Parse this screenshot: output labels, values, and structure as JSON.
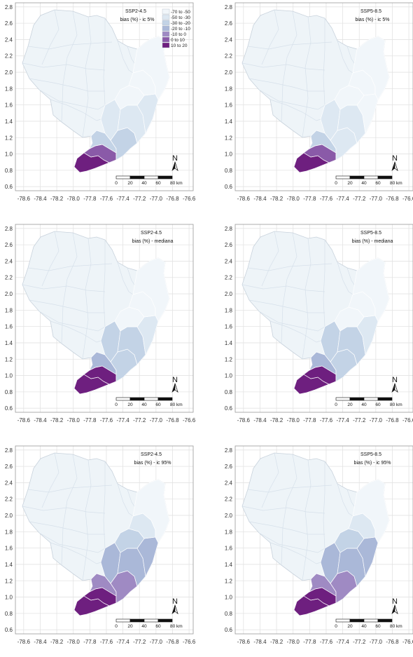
{
  "figure": {
    "colors": {
      "panel_bg": "#ffffff",
      "grid": "#e3e3e3",
      "frame": "#999999",
      "boundary": "#ffffff",
      "base_fill": "#eef4f8"
    },
    "legend": {
      "visible_in_panel": 0,
      "placement": "top-right",
      "classes": [
        {
          "label": "-70 to -50",
          "color": "#f1f6fa"
        },
        {
          "label": "-50 to -30",
          "color": "#dde8f2"
        },
        {
          "label": "-30 to -20",
          "color": "#c3d3e6"
        },
        {
          "label": "-20 to -10",
          "color": "#aab8d8"
        },
        {
          "label": "-10 to 0",
          "color": "#9f8ac3"
        },
        {
          "label": "0 to 10",
          "color": "#8a5aa8"
        },
        {
          "label": "10 to 20",
          "color": "#6e1f7f"
        }
      ]
    },
    "axes": {
      "y_ticks": [
        "2.8",
        "2.6",
        "2.4",
        "2.2",
        "2.0",
        "1.8",
        "1.6",
        "1.4",
        "1.2",
        "1.0",
        "0.8",
        "0.6"
      ],
      "x_ticks": [
        "-78.6",
        "-78.4",
        "-78.2",
        "-78.0",
        "-77.8",
        "-77.6",
        "-77.4",
        "-77.2",
        "-77.0",
        "-76.8",
        "-76.6"
      ],
      "y_range": [
        0.55,
        2.85
      ],
      "x_range": [
        -78.7,
        -76.55
      ]
    },
    "north_arrow": {
      "label": "N"
    },
    "scalebar": {
      "labels": [
        "0",
        "20",
        "40",
        "60",
        "80 km"
      ]
    },
    "panels": [
      {
        "title": "SSP2-4.5",
        "subtitle": "bias (%) - ic 5%",
        "levels": [
          6,
          5,
          2,
          2,
          1,
          1,
          1,
          0,
          0,
          0
        ]
      },
      {
        "title": "SSP5-8.5",
        "subtitle": "bias (%) - ic 5%",
        "levels": [
          6,
          5,
          2,
          1,
          1,
          1,
          0,
          0,
          0,
          0
        ]
      },
      {
        "title": "SSP2-4.5",
        "subtitle": "bias (%) - mediana",
        "levels": [
          6,
          6,
          3,
          2,
          2,
          2,
          1,
          0,
          0,
          0
        ]
      },
      {
        "title": "SSP5-8.5",
        "subtitle": "bias (%) - mediana",
        "levels": [
          6,
          6,
          3,
          2,
          2,
          2,
          1,
          0,
          0,
          0
        ]
      },
      {
        "title": "SSP2-4.5",
        "subtitle": "bias (%) - ic 95%",
        "levels": [
          6,
          6,
          4,
          4,
          3,
          3,
          3,
          2,
          1,
          0
        ]
      },
      {
        "title": "SSP5-8.5",
        "subtitle": "bias (%) - ic 95%",
        "levels": [
          6,
          6,
          4,
          4,
          3,
          3,
          3,
          2,
          1,
          0
        ]
      }
    ]
  }
}
